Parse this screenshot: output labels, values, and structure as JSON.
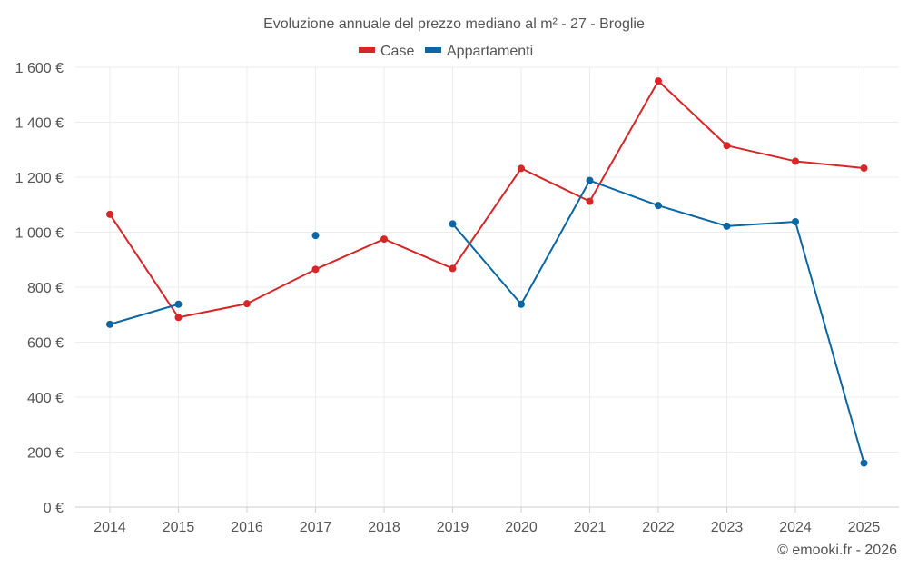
{
  "chart_data": {
    "type": "line",
    "title": "Evoluzione annuale del prezzo mediano al m² - 27 - Broglie",
    "categories": [
      "2014",
      "2015",
      "2016",
      "2017",
      "2018",
      "2019",
      "2020",
      "2021",
      "2022",
      "2023",
      "2024",
      "2025"
    ],
    "ylim": [
      0,
      1600
    ],
    "yticks": [
      0,
      200,
      400,
      600,
      800,
      1000,
      1200,
      1400,
      1600
    ],
    "ytick_labels": [
      "0 €",
      "200 €",
      "400 €",
      "600 €",
      "800 €",
      "1 000 €",
      "1 200 €",
      "1 400 €",
      "1 600 €"
    ],
    "legend_position": "top-center",
    "grid": true,
    "series": [
      {
        "name": "Case",
        "color": "#d62728",
        "values": [
          1065,
          690,
          740,
          865,
          975,
          868,
          1232,
          1112,
          1550,
          1315,
          1258,
          1233
        ]
      },
      {
        "name": "Appartamenti",
        "color": "#0a67a3",
        "values": [
          665,
          738,
          null,
          988,
          null,
          1030,
          738,
          1188,
          1097,
          1022,
          1038,
          160
        ]
      }
    ]
  },
  "credit": "© emooki.fr - 2026"
}
